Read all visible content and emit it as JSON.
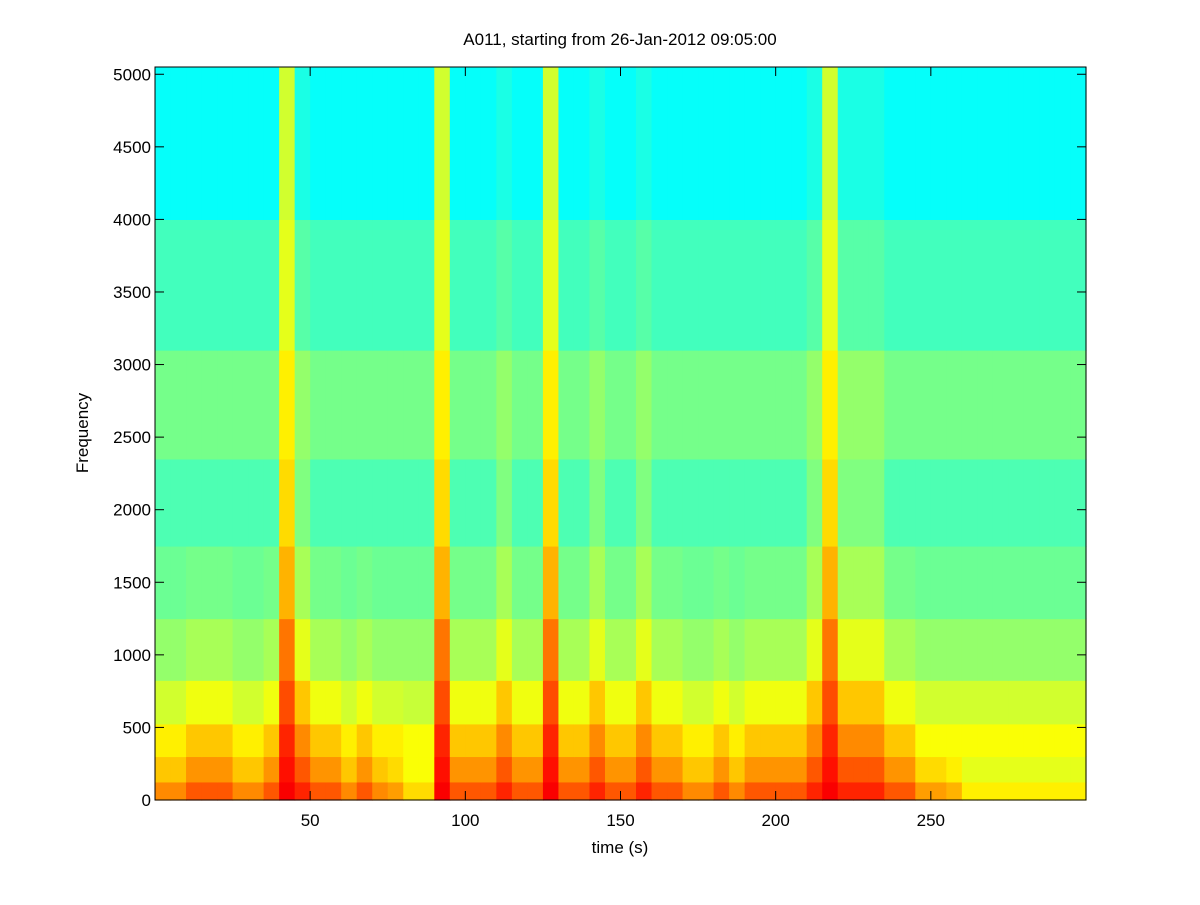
{
  "chart_data": {
    "type": "heatmap",
    "title": "A011, starting from 26-Jan-2012 09:05:00",
    "xlabel": "time (s)",
    "ylabel": "Frequency",
    "xlim": [
      0,
      300
    ],
    "ylim": [
      0,
      5050
    ],
    "xticks": [
      50,
      100,
      150,
      200,
      250
    ],
    "yticks": [
      0,
      500,
      1000,
      1500,
      2000,
      2500,
      3000,
      3500,
      4000,
      4500,
      5000
    ],
    "colormap": "jet",
    "zlim": [
      0,
      1
    ],
    "x": [
      2.5,
      7.5,
      12.5,
      17.5,
      22.5,
      27.5,
      32.5,
      37.5,
      42.5,
      47.5,
      52.5,
      57.5,
      62.5,
      67.5,
      72.5,
      77.5,
      82.5,
      87.5,
      92.5,
      97.5,
      102.5,
      107.5,
      112.5,
      117.5,
      122.5,
      127.5,
      132.5,
      137.5,
      142.5,
      147.5,
      152.5,
      157.5,
      162.5,
      167.5,
      172.5,
      177.5,
      182.5,
      187.5,
      192.5,
      197.5,
      202.5,
      207.5,
      212.5,
      217.5,
      222.5,
      227.5,
      232.5,
      237.5,
      242.5,
      247.5,
      252.5,
      257.5,
      262.5,
      267.5,
      272.5,
      277.5,
      282.5,
      287.5,
      292.5,
      297.5
    ],
    "y": [
      50,
      200,
      400,
      650,
      1000,
      1500,
      2000,
      2700,
      3500,
      4500
    ],
    "z": [
      [
        0.74,
        0.74,
        0.79,
        0.79,
        0.79,
        0.74,
        0.74,
        0.79,
        0.88,
        0.84,
        0.79,
        0.79,
        0.74,
        0.79,
        0.74,
        0.72,
        0.66,
        0.66,
        0.88,
        0.79,
        0.79,
        0.79,
        0.84,
        0.79,
        0.79,
        0.88,
        0.79,
        0.79,
        0.84,
        0.79,
        0.79,
        0.84,
        0.79,
        0.79,
        0.74,
        0.74,
        0.79,
        0.74,
        0.79,
        0.79,
        0.79,
        0.79,
        0.84,
        0.88,
        0.84,
        0.84,
        0.84,
        0.79,
        0.79,
        0.72,
        0.72,
        0.7,
        0.64,
        0.64,
        0.64,
        0.64,
        0.64,
        0.64,
        0.64,
        0.64
      ],
      [
        0.68,
        0.68,
        0.73,
        0.73,
        0.73,
        0.68,
        0.68,
        0.73,
        0.86,
        0.79,
        0.73,
        0.73,
        0.68,
        0.73,
        0.68,
        0.66,
        0.62,
        0.62,
        0.86,
        0.73,
        0.73,
        0.73,
        0.79,
        0.73,
        0.73,
        0.86,
        0.73,
        0.73,
        0.79,
        0.73,
        0.73,
        0.79,
        0.73,
        0.73,
        0.68,
        0.68,
        0.73,
        0.68,
        0.73,
        0.73,
        0.73,
        0.73,
        0.79,
        0.86,
        0.79,
        0.79,
        0.79,
        0.73,
        0.73,
        0.66,
        0.66,
        0.64,
        0.6,
        0.6,
        0.6,
        0.6,
        0.6,
        0.6,
        0.6,
        0.6
      ],
      [
        0.64,
        0.64,
        0.68,
        0.68,
        0.68,
        0.64,
        0.64,
        0.68,
        0.84,
        0.74,
        0.68,
        0.68,
        0.64,
        0.68,
        0.64,
        0.64,
        0.62,
        0.62,
        0.84,
        0.68,
        0.68,
        0.68,
        0.74,
        0.68,
        0.68,
        0.84,
        0.68,
        0.68,
        0.74,
        0.68,
        0.68,
        0.74,
        0.68,
        0.68,
        0.64,
        0.64,
        0.68,
        0.64,
        0.68,
        0.68,
        0.68,
        0.68,
        0.74,
        0.84,
        0.74,
        0.74,
        0.74,
        0.68,
        0.68,
        0.62,
        0.62,
        0.62,
        0.62,
        0.62,
        0.62,
        0.62,
        0.62,
        0.62,
        0.62,
        0.62
      ],
      [
        0.58,
        0.58,
        0.61,
        0.61,
        0.61,
        0.58,
        0.58,
        0.61,
        0.8,
        0.68,
        0.61,
        0.61,
        0.58,
        0.61,
        0.58,
        0.58,
        0.57,
        0.57,
        0.8,
        0.61,
        0.61,
        0.61,
        0.68,
        0.61,
        0.61,
        0.8,
        0.61,
        0.61,
        0.68,
        0.61,
        0.61,
        0.68,
        0.61,
        0.61,
        0.58,
        0.58,
        0.61,
        0.58,
        0.61,
        0.61,
        0.61,
        0.61,
        0.68,
        0.8,
        0.68,
        0.68,
        0.68,
        0.61,
        0.61,
        0.58,
        0.58,
        0.58,
        0.58,
        0.58,
        0.58,
        0.58,
        0.58,
        0.58,
        0.58,
        0.58
      ],
      [
        0.52,
        0.52,
        0.54,
        0.54,
        0.54,
        0.52,
        0.52,
        0.54,
        0.76,
        0.6,
        0.54,
        0.54,
        0.52,
        0.54,
        0.52,
        0.52,
        0.52,
        0.52,
        0.76,
        0.54,
        0.54,
        0.54,
        0.6,
        0.54,
        0.54,
        0.76,
        0.54,
        0.54,
        0.6,
        0.54,
        0.54,
        0.6,
        0.54,
        0.54,
        0.52,
        0.52,
        0.54,
        0.52,
        0.54,
        0.54,
        0.54,
        0.54,
        0.6,
        0.76,
        0.6,
        0.6,
        0.6,
        0.54,
        0.54,
        0.52,
        0.52,
        0.52,
        0.52,
        0.52,
        0.52,
        0.52,
        0.52,
        0.52,
        0.52,
        0.52
      ],
      [
        0.48,
        0.48,
        0.49,
        0.49,
        0.49,
        0.48,
        0.48,
        0.49,
        0.7,
        0.54,
        0.49,
        0.49,
        0.48,
        0.49,
        0.48,
        0.48,
        0.48,
        0.48,
        0.7,
        0.49,
        0.49,
        0.49,
        0.54,
        0.49,
        0.49,
        0.7,
        0.49,
        0.49,
        0.54,
        0.49,
        0.49,
        0.54,
        0.49,
        0.49,
        0.48,
        0.48,
        0.49,
        0.48,
        0.49,
        0.49,
        0.49,
        0.49,
        0.54,
        0.7,
        0.54,
        0.54,
        0.54,
        0.49,
        0.49,
        0.48,
        0.48,
        0.48,
        0.48,
        0.48,
        0.48,
        0.48,
        0.48,
        0.48,
        0.48,
        0.48
      ],
      [
        0.45,
        0.45,
        0.45,
        0.45,
        0.45,
        0.45,
        0.45,
        0.45,
        0.66,
        0.5,
        0.45,
        0.45,
        0.45,
        0.45,
        0.45,
        0.45,
        0.45,
        0.45,
        0.66,
        0.45,
        0.45,
        0.45,
        0.5,
        0.45,
        0.45,
        0.66,
        0.45,
        0.45,
        0.5,
        0.45,
        0.45,
        0.5,
        0.45,
        0.45,
        0.45,
        0.45,
        0.45,
        0.45,
        0.45,
        0.45,
        0.45,
        0.45,
        0.5,
        0.66,
        0.5,
        0.5,
        0.5,
        0.45,
        0.45,
        0.45,
        0.45,
        0.45,
        0.45,
        0.45,
        0.45,
        0.45,
        0.45,
        0.45,
        0.45,
        0.45
      ],
      [
        0.49,
        0.49,
        0.49,
        0.49,
        0.49,
        0.49,
        0.49,
        0.49,
        0.64,
        0.52,
        0.49,
        0.49,
        0.49,
        0.49,
        0.49,
        0.49,
        0.49,
        0.49,
        0.64,
        0.49,
        0.49,
        0.49,
        0.52,
        0.49,
        0.49,
        0.64,
        0.49,
        0.49,
        0.52,
        0.49,
        0.49,
        0.52,
        0.49,
        0.49,
        0.49,
        0.49,
        0.49,
        0.49,
        0.49,
        0.49,
        0.49,
        0.49,
        0.52,
        0.64,
        0.52,
        0.52,
        0.52,
        0.49,
        0.49,
        0.49,
        0.49,
        0.49,
        0.49,
        0.49,
        0.49,
        0.49,
        0.49,
        0.49,
        0.49,
        0.49
      ],
      [
        0.44,
        0.44,
        0.44,
        0.44,
        0.44,
        0.44,
        0.44,
        0.44,
        0.6,
        0.46,
        0.44,
        0.44,
        0.44,
        0.44,
        0.44,
        0.44,
        0.44,
        0.44,
        0.6,
        0.44,
        0.44,
        0.44,
        0.46,
        0.44,
        0.44,
        0.6,
        0.44,
        0.44,
        0.46,
        0.44,
        0.44,
        0.46,
        0.44,
        0.44,
        0.44,
        0.44,
        0.44,
        0.44,
        0.44,
        0.44,
        0.44,
        0.44,
        0.46,
        0.6,
        0.46,
        0.46,
        0.46,
        0.44,
        0.44,
        0.44,
        0.44,
        0.44,
        0.44,
        0.44,
        0.44,
        0.44,
        0.44,
        0.44,
        0.44,
        0.44
      ],
      [
        0.38,
        0.38,
        0.38,
        0.38,
        0.38,
        0.38,
        0.38,
        0.38,
        0.58,
        0.4,
        0.38,
        0.38,
        0.38,
        0.38,
        0.38,
        0.38,
        0.38,
        0.38,
        0.58,
        0.38,
        0.38,
        0.38,
        0.4,
        0.38,
        0.38,
        0.58,
        0.38,
        0.38,
        0.4,
        0.38,
        0.38,
        0.4,
        0.38,
        0.38,
        0.38,
        0.38,
        0.38,
        0.38,
        0.38,
        0.38,
        0.38,
        0.38,
        0.4,
        0.58,
        0.4,
        0.4,
        0.4,
        0.38,
        0.38,
        0.38,
        0.38,
        0.38,
        0.38,
        0.38,
        0.38,
        0.38,
        0.38,
        0.38,
        0.38,
        0.38
      ]
    ]
  }
}
